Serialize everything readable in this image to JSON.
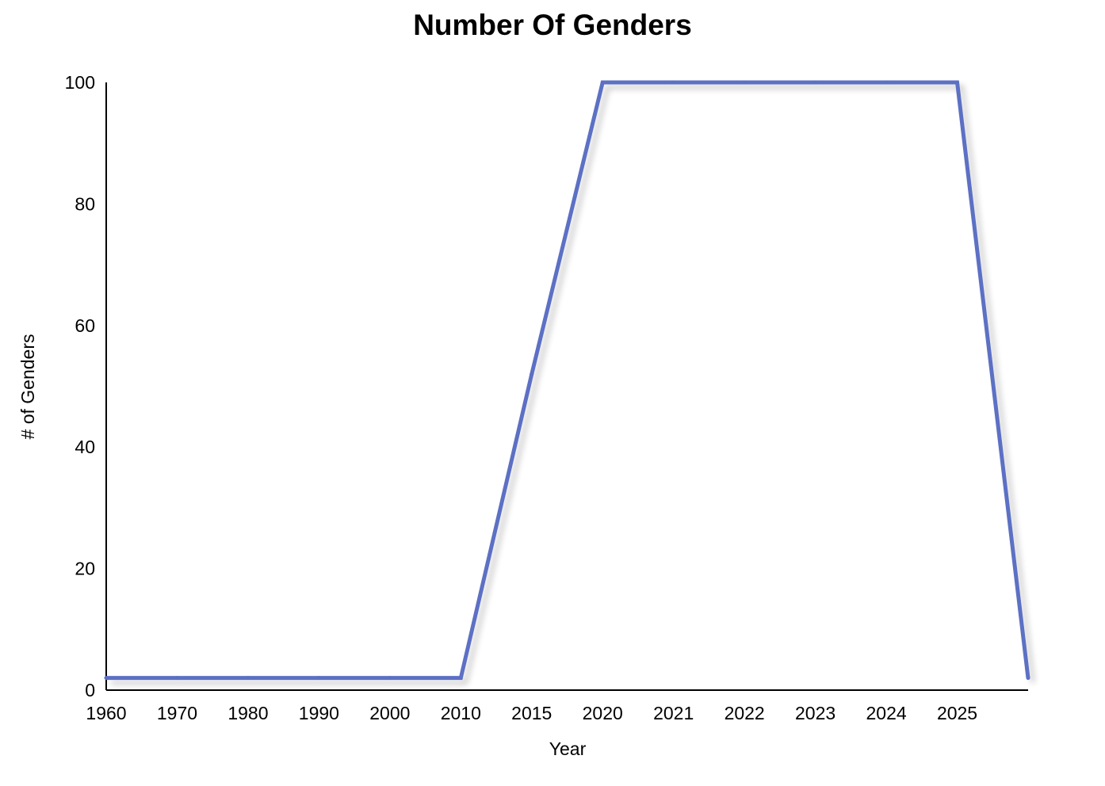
{
  "chart_data": {
    "type": "line",
    "title": "Number Of Genders",
    "xlabel": "Year",
    "ylabel": "# of Genders",
    "categories": [
      "1960",
      "1970",
      "1980",
      "1990",
      "2000",
      "2010",
      "2015",
      "2020",
      "2021",
      "2022",
      "2023",
      "2024",
      "2025",
      ""
    ],
    "y_ticks": [
      0,
      20,
      40,
      60,
      80,
      100
    ],
    "ylim": [
      0,
      100
    ],
    "grid": false,
    "legend": "none",
    "series": [
      {
        "values": [
          2,
          2,
          2,
          2,
          2,
          2,
          52,
          100,
          100,
          100,
          100,
          100,
          100,
          2
        ],
        "color": "#5b6fc4"
      }
    ]
  }
}
